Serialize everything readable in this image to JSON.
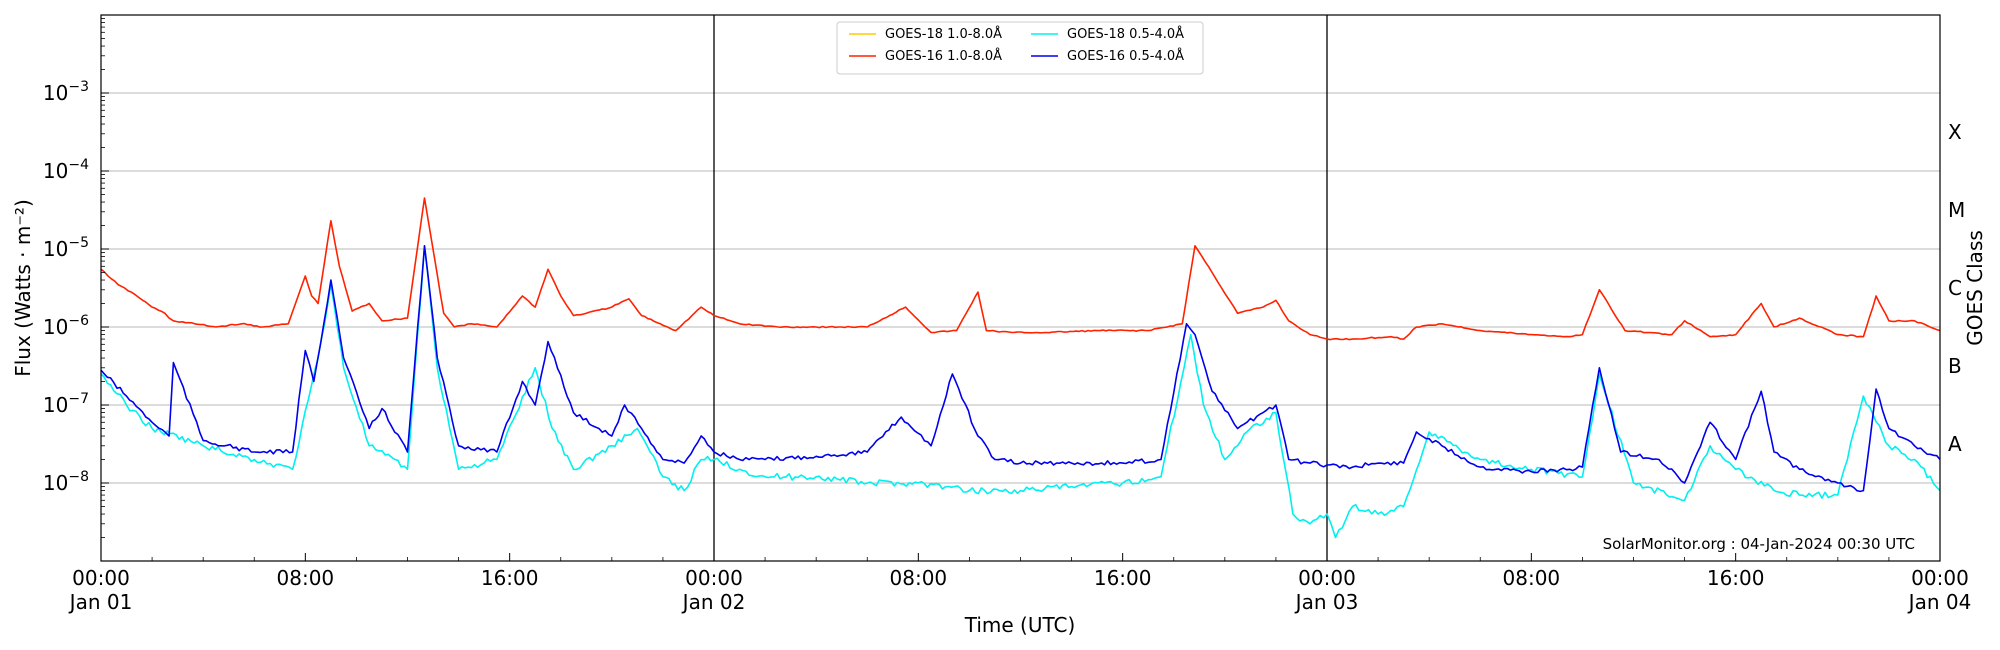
{
  "chart_data": {
    "type": "line",
    "xlabel": "Time (UTC)",
    "ylabel": "Flux (Watts · m⁻²)",
    "y2label": "GOES Class",
    "yscale": "log",
    "ylim": [
      1e-09,
      0.01
    ],
    "xlim": [
      "2024-01-01T00:00",
      "2024-01-04T00:00"
    ],
    "grid": "horizontal at decades",
    "day_lines": [
      "2024-01-02T00:00",
      "2024-01-03T00:00"
    ],
    "credit": "SolarMonitor.org : 04-Jan-2024 00:30 UTC",
    "legend_position": "top-center",
    "y_ticks": [
      {
        "value": 1e-08,
        "base": "10",
        "exp": "−8"
      },
      {
        "value": 1e-07,
        "base": "10",
        "exp": "−7"
      },
      {
        "value": 1e-06,
        "base": "10",
        "exp": "−6"
      },
      {
        "value": 1e-05,
        "base": "10",
        "exp": "−5"
      },
      {
        "value": 0.0001,
        "base": "10",
        "exp": "−4"
      },
      {
        "value": 0.001,
        "base": "10",
        "exp": "−3"
      }
    ],
    "x_ticks": [
      {
        "t": "2024-01-01T00:00",
        "label": "00:00",
        "sub": "Jan 01"
      },
      {
        "t": "2024-01-01T08:00",
        "label": "08:00",
        "sub": ""
      },
      {
        "t": "2024-01-01T16:00",
        "label": "16:00",
        "sub": ""
      },
      {
        "t": "2024-01-02T00:00",
        "label": "00:00",
        "sub": "Jan 02"
      },
      {
        "t": "2024-01-02T08:00",
        "label": "08:00",
        "sub": ""
      },
      {
        "t": "2024-01-02T16:00",
        "label": "16:00",
        "sub": ""
      },
      {
        "t": "2024-01-03T00:00",
        "label": "00:00",
        "sub": "Jan 03"
      },
      {
        "t": "2024-01-03T08:00",
        "label": "08:00",
        "sub": ""
      },
      {
        "t": "2024-01-03T16:00",
        "label": "16:00",
        "sub": ""
      },
      {
        "t": "2024-01-04T00:00",
        "label": "00:00",
        "sub": "Jan 04"
      }
    ],
    "classes": [
      {
        "label": "A",
        "low": 1e-08,
        "high": 1e-07
      },
      {
        "label": "B",
        "low": 1e-07,
        "high": 1e-06
      },
      {
        "label": "C",
        "low": 1e-06,
        "high": 1e-05
      },
      {
        "label": "M",
        "low": 1e-05,
        "high": 0.0001
      },
      {
        "label": "X",
        "low": 0.0001,
        "high": 0.001
      }
    ],
    "series": [
      {
        "name": "GOES-18 1.0-8.0Å",
        "color": "#ffcc00",
        "x": [],
        "y": []
      },
      {
        "name": "GOES-16 1.0-8.0Å",
        "color": "#ff2200",
        "x": [
          "2024-01-01T00:00",
          "2024-01-01T00:40",
          "2024-01-01T01:20",
          "2024-01-01T02:00",
          "2024-01-01T02:30",
          "2024-01-01T02:40",
          "2024-01-01T02:50",
          "2024-01-01T03:40",
          "2024-01-01T04:30",
          "2024-01-01T05:30",
          "2024-01-01T06:20",
          "2024-01-01T07:20",
          "2024-01-01T08:00",
          "2024-01-01T08:15",
          "2024-01-01T08:30",
          "2024-01-01T09:00",
          "2024-01-01T09:20",
          "2024-01-01T09:50",
          "2024-01-01T10:30",
          "2024-01-01T11:00",
          "2024-01-01T12:00",
          "2024-01-01T12:40",
          "2024-01-01T13:00",
          "2024-01-01T13:25",
          "2024-01-01T13:50",
          "2024-01-01T14:30",
          "2024-01-01T15:30",
          "2024-01-01T16:30",
          "2024-01-01T17:00",
          "2024-01-01T17:30",
          "2024-01-01T18:00",
          "2024-01-01T18:30",
          "2024-01-01T19:00",
          "2024-01-01T20:00",
          "2024-01-01T20:40",
          "2024-01-01T21:10",
          "2024-01-01T22:30",
          "2024-01-01T23:30",
          "2024-01-02T00:00",
          "2024-01-02T01:00",
          "2024-01-02T02:30",
          "2024-01-02T04:00",
          "2024-01-02T05:00",
          "2024-01-02T06:00",
          "2024-01-02T07:30",
          "2024-01-02T08:30",
          "2024-01-02T09:30",
          "2024-01-02T10:20",
          "2024-01-02T10:40",
          "2024-01-02T11:40",
          "2024-01-02T13:00",
          "2024-01-02T15:00",
          "2024-01-02T17:00",
          "2024-01-02T18:20",
          "2024-01-02T18:50",
          "2024-01-02T19:30",
          "2024-01-02T20:30",
          "2024-01-02T21:30",
          "2024-01-02T22:00",
          "2024-01-02T22:30",
          "2024-01-02T23:20",
          "2024-01-03T00:00",
          "2024-01-03T01:00",
          "2024-01-03T02:30",
          "2024-01-03T03:00",
          "2024-01-03T03:30",
          "2024-01-03T04:30",
          "2024-01-03T06:00",
          "2024-01-03T08:00",
          "2024-01-03T09:30",
          "2024-01-03T10:00",
          "2024-01-03T10:40",
          "2024-01-03T11:40",
          "2024-01-03T13:30",
          "2024-01-03T14:00",
          "2024-01-03T15:00",
          "2024-01-03T16:00",
          "2024-01-03T17:00",
          "2024-01-03T17:30",
          "2024-01-03T18:30",
          "2024-01-03T20:00",
          "2024-01-03T21:00",
          "2024-01-03T21:30",
          "2024-01-03T22:00",
          "2024-01-03T23:00",
          "2024-01-04T00:00"
        ],
        "y": [
          5.5e-06,
          3.5e-06,
          2.6e-06,
          1.8e-06,
          1.5e-06,
          1.3e-06,
          1.2e-06,
          1.1e-06,
          1e-06,
          1.1e-06,
          1e-06,
          1.1e-06,
          4.5e-06,
          2.5e-06,
          2e-06,
          2.3e-05,
          6e-06,
          1.6e-06,
          2e-06,
          1.2e-06,
          1.3e-06,
          4.5e-05,
          1e-05,
          1.5e-06,
          1e-06,
          1.1e-06,
          1e-06,
          2.5e-06,
          1.8e-06,
          5.5e-06,
          2.5e-06,
          1.4e-06,
          1.5e-06,
          1.8e-06,
          2.3e-06,
          1.4e-06,
          9e-07,
          1.8e-06,
          1.4e-06,
          1.1e-06,
          1e-06,
          1e-06,
          1e-06,
          1e-06,
          1.8e-06,
          8.5e-07,
          9e-07,
          2.8e-06,
          9e-07,
          8.5e-07,
          8.5e-07,
          9e-07,
          9e-07,
          1.1e-06,
          1.1e-05,
          5e-06,
          1.5e-06,
          1.8e-06,
          2.2e-06,
          1.2e-06,
          8e-07,
          7e-07,
          7e-07,
          7.5e-07,
          7e-07,
          1e-06,
          1.1e-06,
          9e-07,
          8e-07,
          7.5e-07,
          8e-07,
          3e-06,
          9e-07,
          8e-07,
          1.2e-06,
          7.5e-07,
          8e-07,
          2e-06,
          1e-06,
          1.3e-06,
          8e-07,
          7.5e-07,
          2.5e-06,
          1.2e-06,
          1.2e-06,
          9e-07
        ]
      },
      {
        "name": "GOES-18 0.5-4.0Å",
        "color": "#00f0f0",
        "x": [
          "2024-01-01T00:00",
          "2024-01-01T01:00",
          "2024-01-01T02:00",
          "2024-01-01T04:00",
          "2024-01-01T06:00",
          "2024-01-01T07:30",
          "2024-01-01T08:30",
          "2024-01-01T09:00",
          "2024-01-01T09:30",
          "2024-01-01T10:30",
          "2024-01-01T12:00",
          "2024-01-01T12:40",
          "2024-01-01T13:10",
          "2024-01-01T14:00",
          "2024-01-01T15:30",
          "2024-01-01T17:00",
          "2024-01-01T17:40",
          "2024-01-01T18:30",
          "2024-01-01T20:00",
          "2024-01-01T21:00",
          "2024-01-01T22:00",
          "2024-01-01T22:50",
          "2024-01-01T23:30",
          "2024-01-02T00:00",
          "2024-01-02T01:00",
          "2024-01-02T02:00",
          "2024-01-02T04:00",
          "2024-01-02T06:00",
          "2024-01-02T08:00",
          "2024-01-02T10:00",
          "2024-01-02T12:00",
          "2024-01-02T14:00",
          "2024-01-02T16:00",
          "2024-01-02T17:30",
          "2024-01-02T18:40",
          "2024-01-02T19:10",
          "2024-01-02T20:00",
          "2024-01-02T21:00",
          "2024-01-02T22:00",
          "2024-01-02T22:40",
          "2024-01-02T23:20",
          "2024-01-03T00:00",
          "2024-01-03T00:20",
          "2024-01-03T01:00",
          "2024-01-03T02:00",
          "2024-01-03T03:00",
          "2024-01-03T04:00",
          "2024-01-03T06:00",
          "2024-01-03T08:00",
          "2024-01-03T10:00",
          "2024-01-03T10:40",
          "2024-01-03T12:00",
          "2024-01-03T14:00",
          "2024-01-03T15:00",
          "2024-01-03T16:00",
          "2024-01-03T17:30",
          "2024-01-03T18:30",
          "2024-01-03T20:00",
          "2024-01-03T21:00",
          "2024-01-03T22:00",
          "2024-01-03T23:00",
          "2024-01-04T00:00"
        ],
        "y": [
          2.5e-07,
          1e-07,
          5e-08,
          3e-08,
          2e-08,
          1.5e-08,
          4e-07,
          3.5e-06,
          3e-07,
          3e-08,
          1.5e-08,
          1.1e-05,
          3e-07,
          1.5e-08,
          2e-08,
          3e-07,
          5e-08,
          1.5e-08,
          3e-08,
          5e-08,
          1.2e-08,
          8e-09,
          2e-08,
          2e-08,
          1.5e-08,
          1.2e-08,
          1.2e-08,
          1e-08,
          1e-08,
          8e-09,
          8e-09,
          9e-09,
          1e-08,
          1.2e-08,
          8e-07,
          1e-07,
          2e-08,
          5e-08,
          8e-08,
          4e-09,
          3e-09,
          4e-09,
          2e-09,
          5e-09,
          4e-09,
          5e-09,
          4.5e-08,
          2e-08,
          1.5e-08,
          1.2e-08,
          2.5e-07,
          1e-08,
          6e-09,
          3e-08,
          1.5e-08,
          8e-09,
          7e-09,
          7e-09,
          1.3e-07,
          3e-08,
          2e-08,
          8e-09
        ]
      },
      {
        "name": "GOES-16 0.5-4.0Å",
        "color": "#0000ee",
        "x": [
          "2024-01-01T00:00",
          "2024-01-01T01:00",
          "2024-01-01T02:00",
          "2024-01-01T02:40",
          "2024-01-01T02:50",
          "2024-01-01T04:00",
          "2024-01-01T06:00",
          "2024-01-01T07:30",
          "2024-01-01T08:00",
          "2024-01-01T08:20",
          "2024-01-01T09:00",
          "2024-01-01T09:30",
          "2024-01-01T10:30",
          "2024-01-01T11:00",
          "2024-01-01T12:00",
          "2024-01-01T12:40",
          "2024-01-01T13:10",
          "2024-01-01T14:00",
          "2024-01-01T15:30",
          "2024-01-01T16:30",
          "2024-01-01T17:00",
          "2024-01-01T17:30",
          "2024-01-01T18:30",
          "2024-01-01T20:00",
          "2024-01-01T20:30",
          "2024-01-01T21:10",
          "2024-01-01T22:00",
          "2024-01-01T22:50",
          "2024-01-01T23:30",
          "2024-01-02T00:00",
          "2024-01-02T01:00",
          "2024-01-02T02:00",
          "2024-01-02T04:00",
          "2024-01-02T06:00",
          "2024-01-02T07:20",
          "2024-01-02T08:30",
          "2024-01-02T09:20",
          "2024-01-02T10:20",
          "2024-01-02T11:00",
          "2024-01-02T12:00",
          "2024-01-02T14:00",
          "2024-01-02T16:00",
          "2024-01-02T17:30",
          "2024-01-02T18:30",
          "2024-01-02T18:50",
          "2024-01-02T19:30",
          "2024-01-02T20:30",
          "2024-01-02T21:30",
          "2024-01-02T22:00",
          "2024-01-02T22:30",
          "2024-01-02T23:20",
          "2024-01-03T00:00",
          "2024-01-03T01:00",
          "2024-01-03T02:00",
          "2024-01-03T03:00",
          "2024-01-03T03:30",
          "2024-01-03T04:30",
          "2024-01-03T06:00",
          "2024-01-03T08:00",
          "2024-01-03T09:30",
          "2024-01-03T10:00",
          "2024-01-03T10:40",
          "2024-01-03T11:30",
          "2024-01-03T13:00",
          "2024-01-03T14:00",
          "2024-01-03T15:00",
          "2024-01-03T16:00",
          "2024-01-03T17:00",
          "2024-01-03T17:30",
          "2024-01-03T18:30",
          "2024-01-03T20:00",
          "2024-01-03T21:00",
          "2024-01-03T21:30",
          "2024-01-03T22:00",
          "2024-01-03T23:00",
          "2024-01-04T00:00"
        ],
        "y": [
          2.8e-07,
          1.3e-07,
          6e-08,
          4e-08,
          3.5e-07,
          3.5e-08,
          2.5e-08,
          2.5e-08,
          5e-07,
          2e-07,
          4e-06,
          4e-07,
          5e-08,
          9e-08,
          2.5e-08,
          1.1e-05,
          4e-07,
          3e-08,
          2.5e-08,
          2e-07,
          1e-07,
          6.5e-07,
          8e-08,
          4e-08,
          1e-07,
          5e-08,
          2e-08,
          1.8e-08,
          4e-08,
          2.5e-08,
          2e-08,
          2e-08,
          2.2e-08,
          2.5e-08,
          7e-08,
          3e-08,
          2.5e-07,
          4e-08,
          2e-08,
          1.8e-08,
          1.8e-08,
          1.8e-08,
          2e-08,
          1.1e-06,
          8e-07,
          1.5e-07,
          5e-08,
          8e-08,
          1e-07,
          2e-08,
          1.8e-08,
          1.7e-08,
          1.6e-08,
          1.8e-08,
          1.8e-08,
          4.5e-08,
          3e-08,
          1.6e-08,
          1.4e-08,
          1.5e-08,
          1.6e-08,
          3e-07,
          2.5e-08,
          2e-08,
          1e-08,
          6e-08,
          2e-08,
          1.5e-07,
          2.5e-08,
          1.5e-08,
          1e-08,
          8e-09,
          1.6e-07,
          5e-08,
          3e-08,
          2e-08
        ]
      }
    ]
  }
}
